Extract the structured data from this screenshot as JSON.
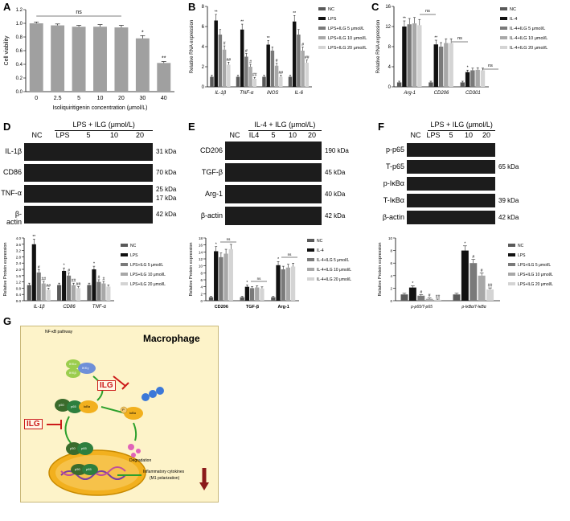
{
  "panel_labels": [
    "A",
    "B",
    "C",
    "D",
    "E",
    "F",
    "G"
  ],
  "colors": {
    "bar_grey": "#a0a0a0",
    "nc": "#5a5a5a",
    "lps": "#111111",
    "ilg5": "#7a7a7a",
    "ilg10": "#a8a8a8",
    "ilg20": "#d4d4d4",
    "cell_bg": "#fdf3c9",
    "nucleus": "#f2b01e",
    "green_arrow": "#2ca02c",
    "red": "#cc1a1a"
  },
  "chart_data": [
    {
      "id": "A",
      "type": "bar",
      "categories": [
        "0",
        "2.5",
        "5",
        "10",
        "20",
        "30",
        "40"
      ],
      "values": [
        1.0,
        0.97,
        0.95,
        0.95,
        0.94,
        0.78,
        0.42
      ],
      "errors": [
        0.02,
        0.02,
        0.02,
        0.03,
        0.03,
        0.04,
        0.02
      ],
      "annotations": [
        "",
        "",
        "",
        "",
        "",
        "*",
        "**"
      ],
      "ns_label": "ns",
      "xlabel": "Isoliquiritigenin concentration (μmol/L)",
      "ylabel": "Cell viability",
      "yticks": [
        "0.0",
        "0.2",
        "0.4",
        "0.6",
        "0.8",
        "1.0",
        "1.2"
      ],
      "ylim": [
        0,
        1.2
      ]
    },
    {
      "id": "B",
      "type": "bar",
      "categories": [
        "IL-1β",
        "TNF-α",
        "iNOS",
        "IL-6"
      ],
      "series": [
        {
          "name": "NC",
          "values": [
            1.0,
            1.0,
            1.0,
            1.0
          ]
        },
        {
          "name": "LPS",
          "values": [
            6.6,
            5.7,
            4.2,
            6.5
          ]
        },
        {
          "name": "LPS+ILG 5 μmol/L",
          "values": [
            5.2,
            3.0,
            3.6,
            5.2
          ]
        },
        {
          "name": "LPS+ILG 10 μmol/L",
          "values": [
            3.7,
            2.0,
            2.1,
            3.6
          ]
        },
        {
          "name": "LPS+ILG 20 μmol/L",
          "values": [
            2.2,
            0.8,
            1.0,
            2.4
          ]
        }
      ],
      "annotations": [
        [
          "",
          "**",
          "",
          "#",
          "##"
        ],
        [
          "",
          "**",
          "#",
          "#",
          "##"
        ],
        [
          "",
          "**",
          "",
          "#",
          "##"
        ],
        [
          "",
          "**",
          "",
          "#",
          "##"
        ]
      ],
      "ylabel": "Relative RNA expression",
      "yticks": [
        "0",
        "2",
        "4",
        "6",
        "8"
      ],
      "ylim": [
        0,
        8
      ]
    },
    {
      "id": "C",
      "type": "bar",
      "categories": [
        "Arg-1",
        "CD206",
        "CD301"
      ],
      "series": [
        {
          "name": "NC",
          "values": [
            1.0,
            1.0,
            1.0
          ]
        },
        {
          "name": "IL-4",
          "values": [
            13.5,
            9.5,
            3.3
          ]
        },
        {
          "name": "IL-4+ILG 5 μmol/L",
          "values": [
            14.0,
            9.0,
            3.7
          ]
        },
        {
          "name": "IL-4+ILG 10 μmol/L",
          "values": [
            14.2,
            9.8,
            3.8
          ]
        },
        {
          "name": "IL-4+ILG 20 μmol/L",
          "values": [
            13.8,
            9.8,
            3.7
          ]
        }
      ],
      "annotations": [
        [
          "",
          "**",
          "",
          "",
          ""
        ],
        [
          "",
          "**",
          "",
          "",
          ""
        ],
        [
          "",
          "*",
          "",
          "",
          ""
        ]
      ],
      "ns_label": "ns",
      "ylabel": "Relative RNA expression",
      "yticks": [
        "0",
        "4",
        "8",
        "12",
        "16"
      ],
      "ylim": [
        0,
        18
      ]
    },
    {
      "id": "D-quant",
      "type": "bar",
      "categories": [
        "IL-1β",
        "CD86",
        "TNF-α"
      ],
      "series": [
        {
          "name": "NC",
          "values": [
            1.0,
            1.0,
            1.0
          ]
        },
        {
          "name": "LPS",
          "values": [
            3.6,
            1.9,
            2.0
          ]
        },
        {
          "name": "LPS+ILG 5 μmol/L",
          "values": [
            1.8,
            1.6,
            1.2
          ]
        },
        {
          "name": "LPS+ILG 10 μmol/L",
          "values": [
            1.1,
            1.0,
            1.1
          ]
        },
        {
          "name": "LPS+ILG 20 μmol/L",
          "values": [
            0.7,
            0.8,
            0.9
          ]
        }
      ],
      "annotations": [
        [
          "",
          "**",
          "#",
          "##",
          "##"
        ],
        [
          "",
          "*",
          "#",
          "##",
          "##"
        ],
        [
          "",
          "*",
          "#",
          "#",
          ""
        ]
      ],
      "ylabel": "Relative Protein expression",
      "yticks": [
        "0.0",
        "0.4",
        "0.8",
        "1.2",
        "1.6",
        "2.0",
        "2.4",
        "2.8",
        "3.2",
        "3.6",
        "4.0"
      ],
      "ylim": [
        0,
        4.0
      ]
    },
    {
      "id": "E-quant",
      "type": "bar",
      "categories": [
        "CD206",
        "TGF-β",
        "Arg-1"
      ],
      "series": [
        {
          "name": "NC",
          "values": [
            1.0,
            1.0,
            1.0
          ]
        },
        {
          "name": "IL-4",
          "values": [
            14.2,
            4.0,
            10.2
          ]
        },
        {
          "name": "IL-4+ILG 5 μmol/L",
          "values": [
            12.5,
            3.6,
            9.0
          ]
        },
        {
          "name": "IL-4+ILG 10 μmol/L",
          "values": [
            13.5,
            3.8,
            9.5
          ]
        },
        {
          "name": "IL-4+ILG 20 μmol/L",
          "values": [
            14.8,
            3.5,
            9.8
          ]
        }
      ],
      "annotations": [
        [
          "",
          "*",
          "",
          "",
          ""
        ],
        [
          "",
          "*",
          "",
          "",
          ""
        ],
        [
          "",
          "*",
          "",
          "",
          ""
        ]
      ],
      "ns_label": "ns",
      "ylabel": "Relative Protein expression",
      "yticks": [
        "0",
        "2",
        "4",
        "6",
        "8",
        "10",
        "12",
        "14",
        "16",
        "18"
      ],
      "ylim": [
        0,
        18
      ]
    },
    {
      "id": "F-quant",
      "type": "bar",
      "categories": [
        "p-p65/T-p65",
        "p-IκBα/T-IκBα"
      ],
      "series": [
        {
          "name": "NC",
          "values": [
            1.0,
            1.0
          ]
        },
        {
          "name": "LPS",
          "values": [
            2.1,
            8.0
          ]
        },
        {
          "name": "LPS+ILG 5 μmol/L",
          "values": [
            0.8,
            6.0
          ]
        },
        {
          "name": "LPS+ILG 10 μmol/L",
          "values": [
            0.3,
            4.0
          ]
        },
        {
          "name": "LPS+ILG 20 μmol/L",
          "values": [
            0.15,
            1.8
          ]
        }
      ],
      "annotations": [
        [
          "",
          "*",
          "#",
          "#",
          "##"
        ],
        [
          "",
          "*",
          "#",
          "#",
          "##"
        ]
      ],
      "ylabel": "Relative Protein expression",
      "yticks": [
        "0",
        "2",
        "4",
        "6",
        "8",
        "10"
      ],
      "ylim": [
        0,
        10
      ]
    }
  ],
  "legends": {
    "B": [
      "NC",
      "LPS",
      "LPS+ILG 5 μmol/L",
      "LPS+ILG 10 μmol/L",
      "LPS+ILG 20 μmol/L"
    ],
    "C": [
      "NC",
      "IL-4",
      "IL-4+ILG 5 μmol/L",
      "IL-4+ILG 10 μmol/L",
      "IL-4+ILG 20 μmol/L"
    ],
    "D": [
      "NC",
      "LPS",
      "LPS+ILG 5 μmol/L",
      "LPS+ILG 10 μmol/L",
      "LPS+ILG 20 μmol/L"
    ],
    "E": [
      "NC",
      "IL-4",
      "IL-4+ILG 5 μmol/L",
      "IL-4+ILG 10 μmol/L",
      "IL-4+ILG 20 μmol/L"
    ],
    "F": [
      "NC",
      "LPS",
      "LPS+ILG 5 μmol/L",
      "LPS+ILG 10 μmol/L",
      "LPS+ILG 20 μmol/L"
    ]
  },
  "blots": {
    "D": {
      "header": "LPS + ILG (μmol/L)",
      "lanes": [
        "NC",
        "LPS",
        "5",
        "10",
        "20"
      ],
      "rows": [
        {
          "name": "IL-1β",
          "kda": [
            "31 kDa"
          ]
        },
        {
          "name": "CD86",
          "kda": [
            "70 kDa"
          ]
        },
        {
          "name": "TNF-α",
          "kda": [
            "25 kDa",
            "17 kDa"
          ]
        },
        {
          "name": "β-actin",
          "kda": [
            "42 kDa"
          ]
        }
      ]
    },
    "E": {
      "header": "IL-4 + ILG (μmol/L)",
      "lanes": [
        "NC",
        "IL4",
        "5",
        "10",
        "20"
      ],
      "rows": [
        {
          "name": "CD206",
          "kda": [
            "190 kDa"
          ]
        },
        {
          "name": "TGF-β",
          "kda": [
            "45 kDa"
          ]
        },
        {
          "name": "Arg-1",
          "kda": [
            "40 kDa"
          ]
        },
        {
          "name": "β-actin",
          "kda": [
            "42 kDa"
          ]
        }
      ]
    },
    "F": {
      "header": "LPS + ILG (μmol/L)",
      "lanes": [
        "NC",
        "LPS",
        "5",
        "10",
        "20"
      ],
      "rows": [
        {
          "name": "p-p65",
          "kda": []
        },
        {
          "name": "T-p65",
          "kda": [
            "65 kDa"
          ]
        },
        {
          "name": "p-IκBα",
          "kda": []
        },
        {
          "name": "T-IκBα",
          "kda": [
            "39 kDa"
          ]
        },
        {
          "name": "β-actin",
          "kda": [
            "42 kDa"
          ]
        }
      ]
    }
  },
  "schematic": {
    "title": "Macrophage",
    "pathway": "NF-κB pathway",
    "ikk_a": "IKKα",
    "ikk_b": "IKKβ",
    "ikk_g": "IKKγ",
    "inhibitor_label": "ILG",
    "p50": "p50",
    "p65": "p65",
    "ikba": "IκBα",
    "p": "P",
    "degradation": "Degradation",
    "output": "Inflammatory cytokines",
    "output_sub": "(M1 polarization)"
  }
}
